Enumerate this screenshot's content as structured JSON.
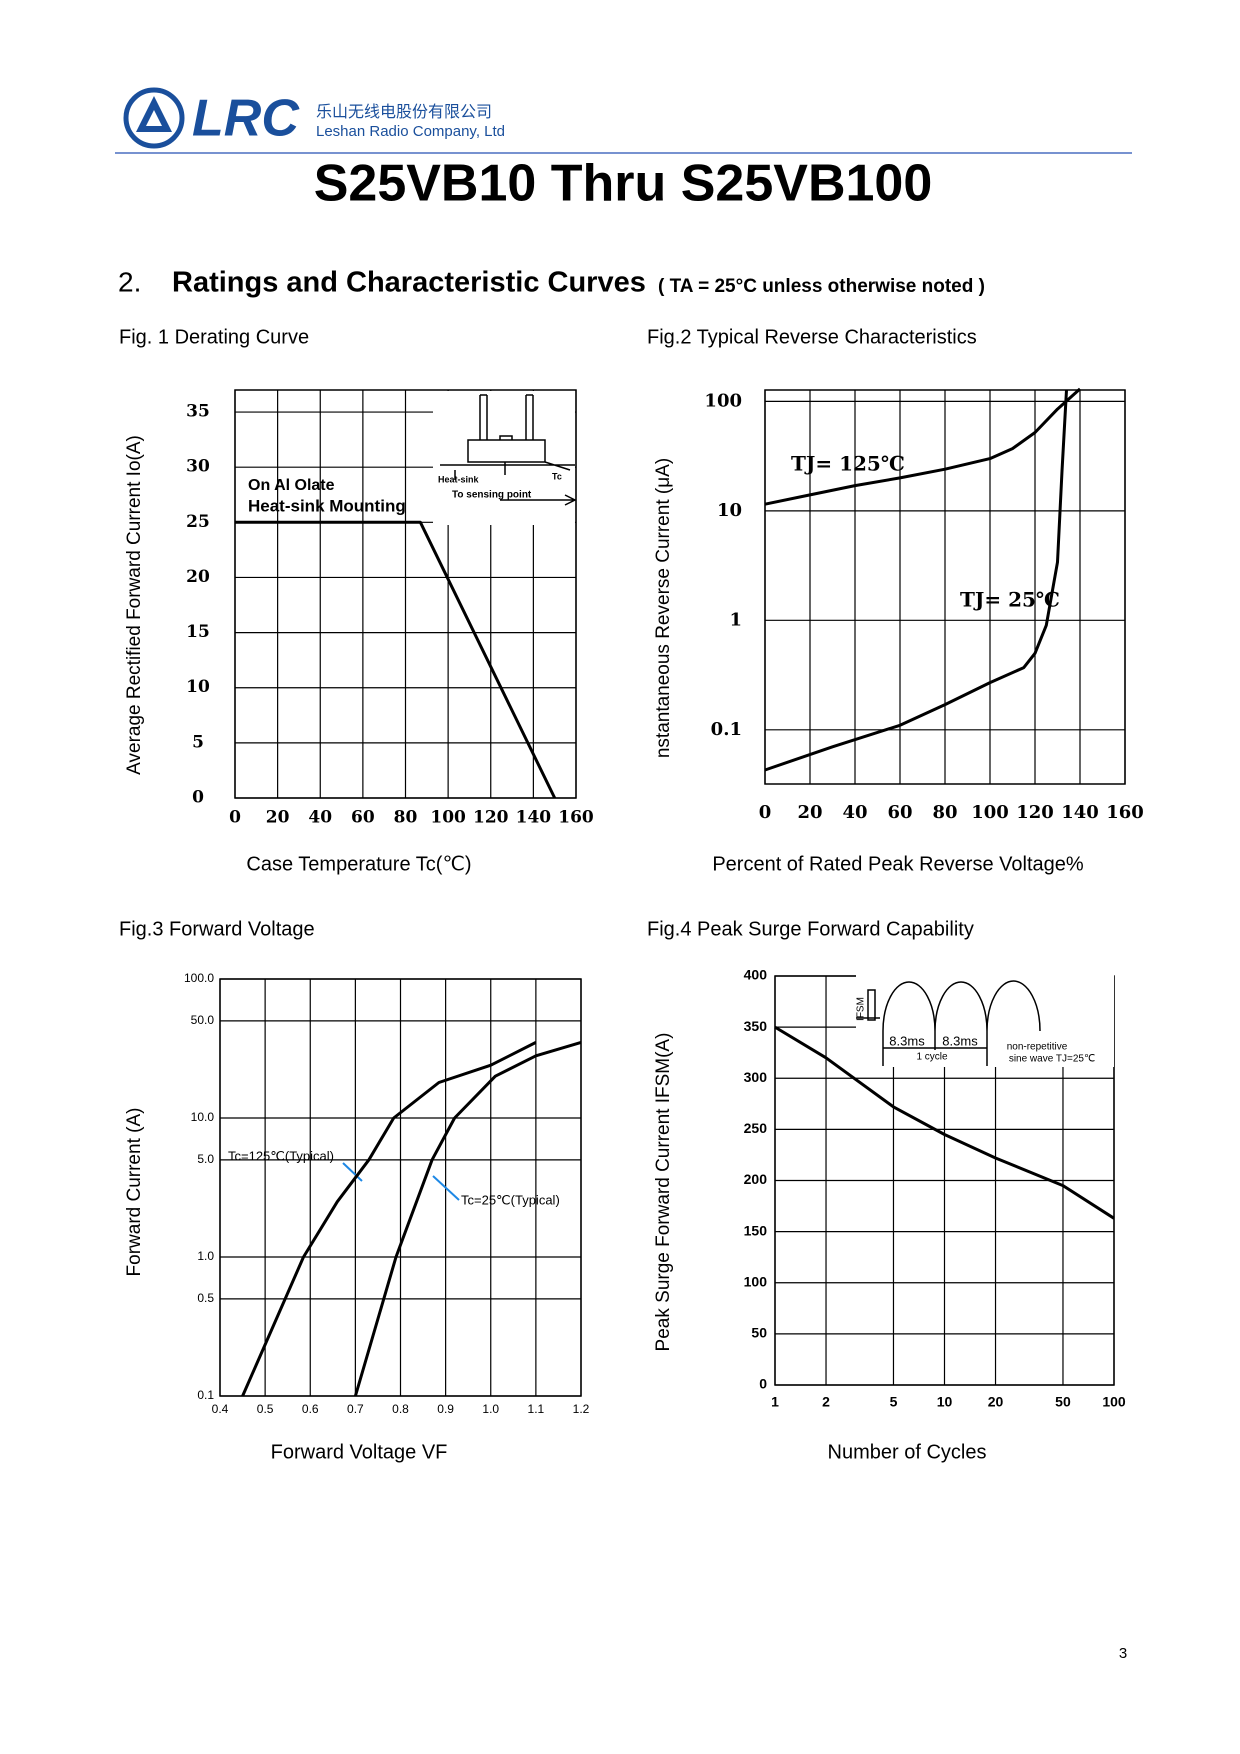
{
  "header": {
    "logo": "LRC",
    "company_cn": "乐山无线电股份有限公司",
    "company_en": "Leshan Radio Company, Ltd"
  },
  "title": "S25VB10 Thru S25VB100",
  "section": {
    "number": "2.",
    "heading": "Ratings and Characteristic Curves",
    "note": "( TA = 25°C unless otherwise noted )"
  },
  "page_number": "3",
  "chart_data": [
    {
      "type": "line",
      "title": "Fig. 1 Derating Curve",
      "x_label": "Case Temperature Tc(℃)",
      "y_label": "Average Rectified Forward Current Io(A)",
      "xlim": [
        0,
        160
      ],
      "ylim": [
        0,
        37
      ],
      "xticks": [
        0,
        20,
        40,
        60,
        80,
        100,
        120,
        140,
        160
      ],
      "yticks": [
        0,
        5,
        10,
        15,
        20,
        25,
        30,
        35
      ],
      "grid": true,
      "series": [
        {
          "color": "#000000",
          "x": [
            0,
            87,
            150
          ],
          "values": [
            25,
            25,
            0
          ]
        }
      ],
      "annotations": [
        "On Al Olate",
        "Heat-sink Mounting",
        "Heat-sink",
        "Tc",
        "To sensing point"
      ]
    },
    {
      "type": "line",
      "title": "Fig.2    Typical Reverse Characteristics",
      "x_label": "Percent of Rated Peak Reverse Voltage%",
      "y_label": "nstantaneous Reverse Current (μA)",
      "xlim": [
        0,
        160
      ],
      "ylim": [
        0.032,
        127
      ],
      "y_scale": "log",
      "xticks": [
        0,
        20,
        40,
        60,
        80,
        100,
        120,
        140,
        160
      ],
      "yticks": [
        0.1,
        1,
        10,
        100
      ],
      "grid": true,
      "series": [
        {
          "color": "#000000",
          "x": [
            0,
            20,
            40,
            60,
            80,
            100,
            110,
            120,
            130,
            140
          ],
          "values": [
            11.5,
            14,
            17,
            20,
            24,
            30,
            37,
            52,
            85,
            130
          ]
        },
        {
          "color": "#000000",
          "x": [
            0,
            30,
            60,
            80,
            100,
            115,
            120,
            125,
            130,
            132,
            134
          ],
          "values": [
            0.043,
            0.07,
            0.11,
            0.17,
            0.27,
            0.37,
            0.5,
            0.9,
            3.4,
            23,
            127
          ]
        }
      ],
      "annotations": [
        "TJ= 125℃",
        "TJ= 25℃"
      ]
    },
    {
      "type": "line",
      "title": "Fig.3    Forward Voltage",
      "x_label": "Forward Voltage VF",
      "y_label": "Forward Current (A)",
      "xlim": [
        0.4,
        1.2
      ],
      "ylim": [
        0.1,
        100
      ],
      "y_scale": "log",
      "xticks": [
        0.4,
        0.5,
        0.6,
        0.7,
        0.8,
        0.9,
        {
          "value": 1,
          "label": "1.0"
        },
        1.1,
        1.2
      ],
      "yticks": [
        0.1,
        0.5,
        {
          "value": 1,
          "label": "1.0"
        },
        {
          "value": 5,
          "label": "5.0"
        },
        {
          "value": 10,
          "label": "10.0"
        },
        {
          "value": 50,
          "label": "50.0"
        },
        {
          "value": 100,
          "label": "100.0"
        }
      ],
      "grid": true,
      "series": [
        {
          "color": "#000000",
          "x": [
            0.45,
            0.585,
            0.66,
            0.73,
            0.785,
            0.885,
            1.0,
            1.1
          ],
          "values": [
            0.1,
            1,
            2.5,
            5,
            10,
            18,
            24,
            35
          ]
        },
        {
          "color": "#000000",
          "x": [
            0.7,
            0.79,
            0.87,
            0.92,
            1.01,
            1.1,
            1.2
          ],
          "values": [
            0.1,
            1,
            5,
            10,
            20,
            28,
            35
          ]
        }
      ],
      "annotations": [
        "Tc=125℃(Typical)",
        "Tc=25℃(Typical)"
      ]
    },
    {
      "type": "line",
      "title": "Fig.4    Peak Surge Forward Capability",
      "x_label": "Number of Cycles",
      "y_label": "Peak Surge Forward Current IFSM(A)",
      "xlim": [
        1,
        100
      ],
      "ylim": [
        0,
        400
      ],
      "x_scale": "log",
      "xticks": [
        1,
        2,
        5,
        10,
        20,
        50,
        100
      ],
      "yticks": [
        0,
        50,
        100,
        150,
        200,
        250,
        300,
        350,
        400
      ],
      "grid": true,
      "series": [
        {
          "color": "#000000",
          "x": [
            1,
            2,
            5,
            10,
            20,
            50,
            100
          ],
          "values": [
            350,
            320,
            272,
            245,
            222,
            195,
            163
          ]
        }
      ],
      "annotations": [
        "IFSM",
        "8.3ms",
        "8.3ms",
        "1 cycle",
        "non-repetitive",
        "sine wave  TJ=25℃"
      ]
    }
  ]
}
